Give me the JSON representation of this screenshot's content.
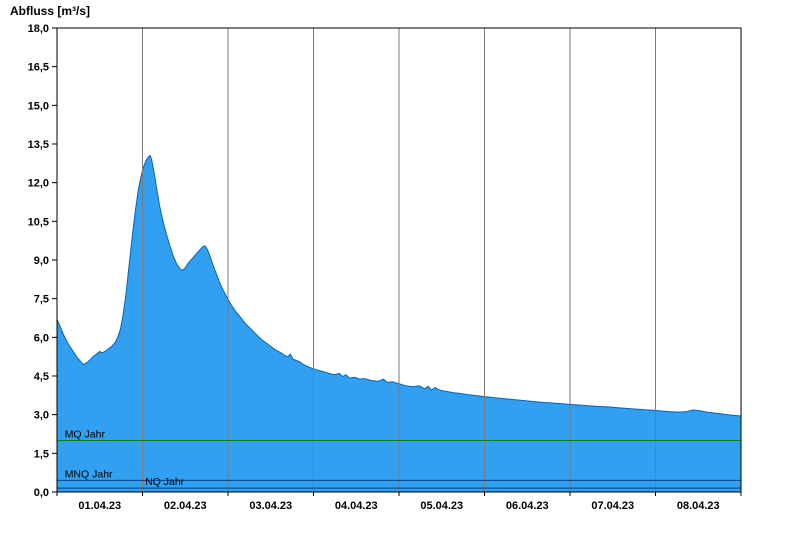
{
  "chart_data": {
    "type": "area",
    "title": "Abfluss [m³/s]",
    "ylabel": "Abfluss [m³/s]",
    "xlabel": "",
    "ylim": [
      0,
      18
    ],
    "x_days": 8,
    "grid": "vertical-day-boundaries",
    "legend": "none",
    "y_ticks": [
      {
        "value": 0.0,
        "label": "0,0"
      },
      {
        "value": 1.5,
        "label": "1,5"
      },
      {
        "value": 3.0,
        "label": "3,0"
      },
      {
        "value": 4.5,
        "label": "4,5"
      },
      {
        "value": 6.0,
        "label": "6,0"
      },
      {
        "value": 7.5,
        "label": "7,5"
      },
      {
        "value": 9.0,
        "label": "9,0"
      },
      {
        "value": 10.5,
        "label": "10,5"
      },
      {
        "value": 12.0,
        "label": "12,0"
      },
      {
        "value": 13.5,
        "label": "13,5"
      },
      {
        "value": 15.0,
        "label": "15,0"
      },
      {
        "value": 16.5,
        "label": "16,5"
      },
      {
        "value": 18.0,
        "label": "18,0"
      }
    ],
    "x_ticks": [
      {
        "label": "01.04.23"
      },
      {
        "label": "02.04.23"
      },
      {
        "label": "03.04.23"
      },
      {
        "label": "04.04.23"
      },
      {
        "label": "05.04.23"
      },
      {
        "label": "06.04.23"
      },
      {
        "label": "07.04.23"
      },
      {
        "label": "08.04.23"
      }
    ],
    "reference_lines": [
      {
        "label": "MQ Jahr",
        "value": 2.0,
        "color": "#008000",
        "label_x_day": 0.09
      },
      {
        "label": "MNQ Jahr",
        "value": 0.45,
        "color": "#004080",
        "label_x_day": 0.09
      },
      {
        "label": "NQ Jahr",
        "value": 0.15,
        "color": "#004080",
        "label_x_day": 1.03
      }
    ],
    "series": [
      {
        "name": "Abfluss",
        "unit": "m³/s",
        "points": [
          [
            0.0,
            6.7
          ],
          [
            0.02,
            6.55
          ],
          [
            0.04,
            6.4
          ],
          [
            0.07,
            6.15
          ],
          [
            0.1,
            5.95
          ],
          [
            0.13,
            5.75
          ],
          [
            0.16,
            5.6
          ],
          [
            0.2,
            5.4
          ],
          [
            0.24,
            5.2
          ],
          [
            0.28,
            5.05
          ],
          [
            0.31,
            4.95
          ],
          [
            0.34,
            5.0
          ],
          [
            0.38,
            5.1
          ],
          [
            0.42,
            5.25
          ],
          [
            0.46,
            5.35
          ],
          [
            0.5,
            5.45
          ],
          [
            0.53,
            5.4
          ],
          [
            0.56,
            5.45
          ],
          [
            0.6,
            5.55
          ],
          [
            0.64,
            5.65
          ],
          [
            0.68,
            5.8
          ],
          [
            0.71,
            6.0
          ],
          [
            0.74,
            6.3
          ],
          [
            0.77,
            6.8
          ],
          [
            0.8,
            7.5
          ],
          [
            0.83,
            8.4
          ],
          [
            0.86,
            9.3
          ],
          [
            0.89,
            10.2
          ],
          [
            0.92,
            11.0
          ],
          [
            0.95,
            11.7
          ],
          [
            0.98,
            12.2
          ],
          [
            1.01,
            12.6
          ],
          [
            1.04,
            12.85
          ],
          [
            1.07,
            13.0
          ],
          [
            1.09,
            13.05
          ],
          [
            1.11,
            12.85
          ],
          [
            1.14,
            12.3
          ],
          [
            1.17,
            11.7
          ],
          [
            1.2,
            11.1
          ],
          [
            1.24,
            10.5
          ],
          [
            1.28,
            10.0
          ],
          [
            1.32,
            9.55
          ],
          [
            1.36,
            9.15
          ],
          [
            1.4,
            8.85
          ],
          [
            1.44,
            8.65
          ],
          [
            1.47,
            8.6
          ],
          [
            1.5,
            8.7
          ],
          [
            1.54,
            8.9
          ],
          [
            1.58,
            9.05
          ],
          [
            1.62,
            9.2
          ],
          [
            1.66,
            9.35
          ],
          [
            1.7,
            9.5
          ],
          [
            1.73,
            9.55
          ],
          [
            1.76,
            9.4
          ],
          [
            1.79,
            9.15
          ],
          [
            1.82,
            8.85
          ],
          [
            1.86,
            8.5
          ],
          [
            1.9,
            8.15
          ],
          [
            1.94,
            7.85
          ],
          [
            1.98,
            7.6
          ],
          [
            2.02,
            7.35
          ],
          [
            2.08,
            7.05
          ],
          [
            2.14,
            6.8
          ],
          [
            2.2,
            6.55
          ],
          [
            2.26,
            6.35
          ],
          [
            2.32,
            6.15
          ],
          [
            2.38,
            5.95
          ],
          [
            2.44,
            5.8
          ],
          [
            2.5,
            5.65
          ],
          [
            2.56,
            5.5
          ],
          [
            2.62,
            5.4
          ],
          [
            2.66,
            5.3
          ],
          [
            2.7,
            5.25
          ],
          [
            2.73,
            5.35
          ],
          [
            2.76,
            5.15
          ],
          [
            2.8,
            5.1
          ],
          [
            2.84,
            5.05
          ],
          [
            2.88,
            4.95
          ],
          [
            2.94,
            4.85
          ],
          [
            3.0,
            4.78
          ],
          [
            3.08,
            4.7
          ],
          [
            3.16,
            4.62
          ],
          [
            3.24,
            4.55
          ],
          [
            3.3,
            4.6
          ],
          [
            3.34,
            4.48
          ],
          [
            3.38,
            4.55
          ],
          [
            3.42,
            4.42
          ],
          [
            3.48,
            4.45
          ],
          [
            3.54,
            4.38
          ],
          [
            3.6,
            4.4
          ],
          [
            3.68,
            4.32
          ],
          [
            3.76,
            4.3
          ],
          [
            3.82,
            4.38
          ],
          [
            3.86,
            4.25
          ],
          [
            3.92,
            4.28
          ],
          [
            4.0,
            4.2
          ],
          [
            4.08,
            4.12
          ],
          [
            4.16,
            4.08
          ],
          [
            4.24,
            4.12
          ],
          [
            4.3,
            4.0
          ],
          [
            4.34,
            4.1
          ],
          [
            4.38,
            3.95
          ],
          [
            4.42,
            4.05
          ],
          [
            4.48,
            3.95
          ],
          [
            4.56,
            3.9
          ],
          [
            4.64,
            3.85
          ],
          [
            4.72,
            3.82
          ],
          [
            4.8,
            3.78
          ],
          [
            4.9,
            3.74
          ],
          [
            5.0,
            3.7
          ],
          [
            5.12,
            3.66
          ],
          [
            5.24,
            3.62
          ],
          [
            5.36,
            3.58
          ],
          [
            5.48,
            3.54
          ],
          [
            5.6,
            3.5
          ],
          [
            5.72,
            3.47
          ],
          [
            5.84,
            3.44
          ],
          [
            5.96,
            3.41
          ],
          [
            6.08,
            3.38
          ],
          [
            6.2,
            3.35
          ],
          [
            6.32,
            3.32
          ],
          [
            6.44,
            3.3
          ],
          [
            6.56,
            3.27
          ],
          [
            6.68,
            3.24
          ],
          [
            6.8,
            3.21
          ],
          [
            6.92,
            3.18
          ],
          [
            7.04,
            3.15
          ],
          [
            7.16,
            3.12
          ],
          [
            7.28,
            3.1
          ],
          [
            7.36,
            3.12
          ],
          [
            7.44,
            3.18
          ],
          [
            7.52,
            3.15
          ],
          [
            7.6,
            3.1
          ],
          [
            7.7,
            3.06
          ],
          [
            7.8,
            3.02
          ],
          [
            7.9,
            2.98
          ],
          [
            8.0,
            2.95
          ]
        ]
      }
    ],
    "colors": {
      "fill": "#31a0f0",
      "line": "#0b62b0",
      "grid": "#7a7a7a",
      "axis": "#000000",
      "background": "#ffffff"
    }
  }
}
